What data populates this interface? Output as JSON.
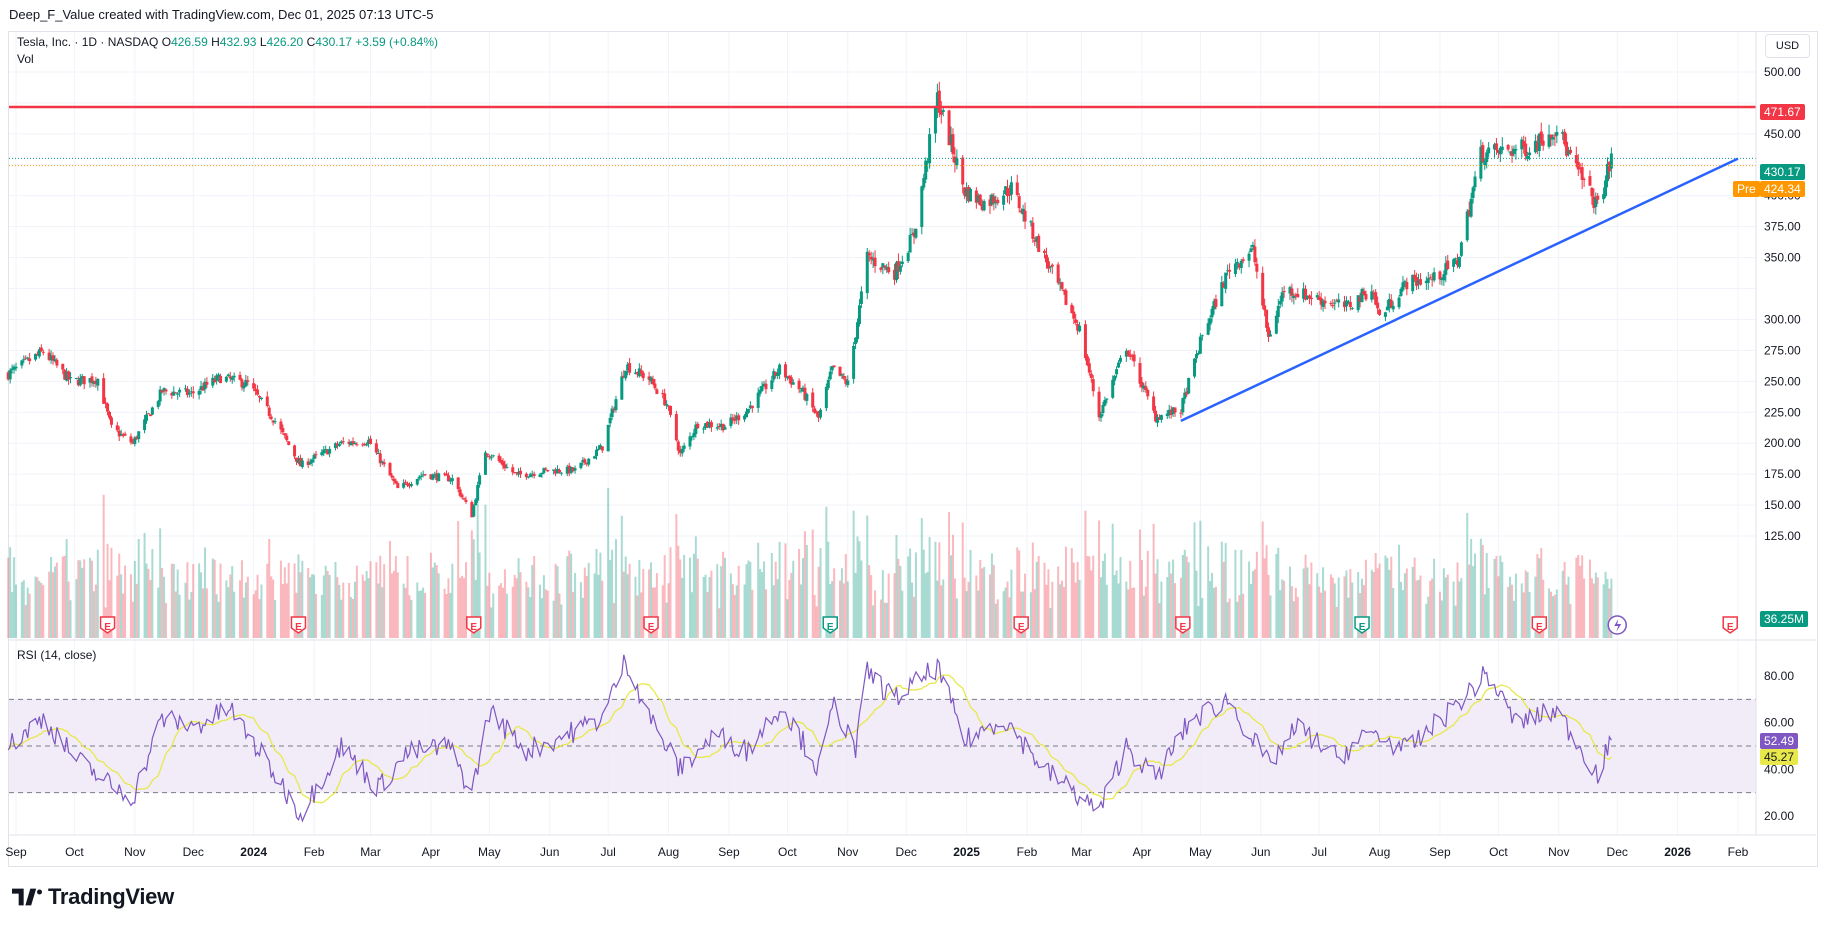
{
  "attribution": "Deep_F_Value created with TradingView.com, Dec 01, 2025 07:13 UTC-5",
  "legend": {
    "symbol": "Tesla, Inc. · 1D · NASDAQ",
    "open_label": "O",
    "open": "426.59",
    "high_label": "H",
    "high": "432.93",
    "low_label": "L",
    "low": "426.20",
    "close_label": "C",
    "close": "430.17",
    "change": "+3.59 (+0.84%)",
    "volume_label": "Vol"
  },
  "currency": "USD",
  "rsi_label": "RSI (14, close)",
  "price_tags": {
    "resistance": "471.67",
    "last": "430.17",
    "pre_label": "Pre",
    "pre": "424.34",
    "volume": "36.25M"
  },
  "rsi_tags": {
    "rsi": "52.49",
    "ma": "45.27"
  },
  "brand": "TradingView",
  "colors": {
    "up": "#089981",
    "down": "#f23645",
    "resistance": "#f23645",
    "trendline": "#2962ff",
    "rsi_line": "#7e57c2",
    "rsi_ma": "#e8e84a",
    "rsi_band": "#ede7f6",
    "pre": "#ff9800"
  },
  "earnings_marker_icons": [
    "earnings-marker-icon"
  ],
  "chart_data": [
    {
      "type": "candlestick",
      "title": "Tesla, Inc. · 1D · NASDAQ",
      "y_ticks": [
        125,
        150,
        175,
        200,
        225,
        250,
        275,
        300,
        325,
        350,
        375,
        400,
        425,
        450,
        475,
        500
      ],
      "y_tick_labels": [
        "125.00",
        "150.00",
        "175.00",
        "200.00",
        "225.00",
        "250.00",
        "275.00",
        "300.00",
        "",
        "350.00",
        "375.00",
        "400.00",
        "",
        "450.00",
        "",
        "500.00"
      ],
      "ylim": [
        115,
        505
      ],
      "x_tick_labels": [
        "Sep",
        "Oct",
        "Nov",
        "Dec",
        "2024",
        "Feb",
        "Mar",
        "Apr",
        "May",
        "Jun",
        "Jul",
        "Aug",
        "Sep",
        "Oct",
        "Nov",
        "Dec",
        "2025",
        "Feb",
        "Mar",
        "Apr",
        "May",
        "Jun",
        "Jul",
        "Aug",
        "Sep",
        "Oct",
        "Nov",
        "Dec",
        "2026",
        "Feb"
      ],
      "x_tick_dates": [
        "2023-09-01",
        "2023-10-01",
        "2023-11-01",
        "2023-12-01",
        "2024-01-01",
        "2024-02-01",
        "2024-03-01",
        "2024-04-01",
        "2024-05-01",
        "2024-06-01",
        "2024-07-01",
        "2024-08-01",
        "2024-09-01",
        "2024-10-01",
        "2024-11-01",
        "2024-12-01",
        "2025-01-01",
        "2025-02-01",
        "2025-03-01",
        "2025-04-01",
        "2025-05-01",
        "2025-06-01",
        "2025-07-01",
        "2025-08-01",
        "2025-09-01",
        "2025-10-01",
        "2025-11-01",
        "2025-12-01",
        "2026-01-01",
        "2026-02-01"
      ],
      "close_path": [
        {
          "date": "2023-08-28",
          "close": 256
        },
        {
          "date": "2023-09-15",
          "close": 274
        },
        {
          "date": "2023-09-29",
          "close": 250
        },
        {
          "date": "2023-10-13",
          "close": 252
        },
        {
          "date": "2023-10-20",
          "close": 212
        },
        {
          "date": "2023-10-31",
          "close": 200
        },
        {
          "date": "2023-11-15",
          "close": 242
        },
        {
          "date": "2023-11-30",
          "close": 240
        },
        {
          "date": "2023-12-15",
          "close": 253
        },
        {
          "date": "2023-12-29",
          "close": 248
        },
        {
          "date": "2024-01-12",
          "close": 218
        },
        {
          "date": "2024-01-25",
          "close": 182
        },
        {
          "date": "2024-02-15",
          "close": 200
        },
        {
          "date": "2024-02-29",
          "close": 202
        },
        {
          "date": "2024-03-15",
          "close": 163
        },
        {
          "date": "2024-03-28",
          "close": 175
        },
        {
          "date": "2024-04-12",
          "close": 171
        },
        {
          "date": "2024-04-22",
          "close": 142
        },
        {
          "date": "2024-04-29",
          "close": 194
        },
        {
          "date": "2024-05-15",
          "close": 174
        },
        {
          "date": "2024-05-31",
          "close": 178
        },
        {
          "date": "2024-06-14",
          "close": 178
        },
        {
          "date": "2024-06-28",
          "close": 197
        },
        {
          "date": "2024-07-10",
          "close": 263
        },
        {
          "date": "2024-07-22",
          "close": 252
        },
        {
          "date": "2024-07-31",
          "close": 232
        },
        {
          "date": "2024-08-07",
          "close": 191
        },
        {
          "date": "2024-08-16",
          "close": 216
        },
        {
          "date": "2024-08-30",
          "close": 214
        },
        {
          "date": "2024-09-10",
          "close": 226
        },
        {
          "date": "2024-09-27",
          "close": 260
        },
        {
          "date": "2024-10-09",
          "close": 241
        },
        {
          "date": "2024-10-17",
          "close": 220
        },
        {
          "date": "2024-10-24",
          "close": 260
        },
        {
          "date": "2024-11-01",
          "close": 248
        },
        {
          "date": "2024-11-11",
          "close": 350
        },
        {
          "date": "2024-11-25",
          "close": 338
        },
        {
          "date": "2024-12-05",
          "close": 369
        },
        {
          "date": "2024-12-17",
          "close": 479
        },
        {
          "date": "2024-12-31",
          "close": 404
        },
        {
          "date": "2025-01-10",
          "close": 394
        },
        {
          "date": "2025-01-24",
          "close": 406
        },
        {
          "date": "2025-02-10",
          "close": 350
        },
        {
          "date": "2025-02-28",
          "close": 292
        },
        {
          "date": "2025-03-10",
          "close": 222
        },
        {
          "date": "2025-03-24",
          "close": 278
        },
        {
          "date": "2025-04-08",
          "close": 221
        },
        {
          "date": "2025-04-21",
          "close": 227
        },
        {
          "date": "2025-05-02",
          "close": 287
        },
        {
          "date": "2025-05-16",
          "close": 342
        },
        {
          "date": "2025-05-28",
          "close": 356
        },
        {
          "date": "2025-06-05",
          "close": 285
        },
        {
          "date": "2025-06-13",
          "close": 325
        },
        {
          "date": "2025-06-30",
          "close": 317
        },
        {
          "date": "2025-07-15",
          "close": 310
        },
        {
          "date": "2025-07-28",
          "close": 325
        },
        {
          "date": "2025-08-01",
          "close": 302
        },
        {
          "date": "2025-08-15",
          "close": 330
        },
        {
          "date": "2025-08-29",
          "close": 333
        },
        {
          "date": "2025-09-10",
          "close": 347
        },
        {
          "date": "2025-09-22",
          "close": 434
        },
        {
          "date": "2025-10-03",
          "close": 436
        },
        {
          "date": "2025-10-17",
          "close": 439
        },
        {
          "date": "2025-10-31",
          "close": 456
        },
        {
          "date": "2025-11-07",
          "close": 430
        },
        {
          "date": "2025-11-21",
          "close": 391
        },
        {
          "date": "2025-11-28",
          "close": 430
        }
      ],
      "resistance_level": 471.67,
      "last_price": 430.17,
      "pre_market_price": 424.34,
      "trendline": {
        "start": {
          "date": "2025-04-21",
          "price": 218
        },
        "end": {
          "date": "2026-02-01",
          "price": 430
        }
      },
      "earnings_dates": [
        "2023-10-18",
        "2024-01-24",
        "2024-04-23",
        "2024-07-23",
        "2024-10-23",
        "2025-01-29",
        "2025-04-22",
        "2025-07-23",
        "2025-10-22",
        "2026-01-28"
      ],
      "earnings_beat": [
        false,
        false,
        false,
        false,
        true,
        false,
        false,
        true,
        false,
        false
      ]
    },
    {
      "type": "line",
      "title": "RSI (14, close)",
      "y_ticks": [
        20,
        40,
        60,
        80
      ],
      "y_tick_labels": [
        "20.00",
        "40.00",
        "60.00",
        "80.00"
      ],
      "ylim": [
        12,
        92
      ],
      "band": [
        30,
        70
      ],
      "midline": 50,
      "rsi_path": [
        {
          "date": "2023-08-28",
          "rsi": 50
        },
        {
          "date": "2023-09-15",
          "rsi": 62
        },
        {
          "date": "2023-10-01",
          "rsi": 45
        },
        {
          "date": "2023-10-20",
          "rsi": 33
        },
        {
          "date": "2023-10-31",
          "rsi": 28
        },
        {
          "date": "2023-11-15",
          "rsi": 62
        },
        {
          "date": "2023-12-01",
          "rsi": 58
        },
        {
          "date": "2023-12-20",
          "rsi": 66
        },
        {
          "date": "2024-01-10",
          "rsi": 40
        },
        {
          "date": "2024-01-25",
          "rsi": 21
        },
        {
          "date": "2024-02-15",
          "rsi": 50
        },
        {
          "date": "2024-03-05",
          "rsi": 32
        },
        {
          "date": "2024-03-20",
          "rsi": 47
        },
        {
          "date": "2024-04-10",
          "rsi": 50
        },
        {
          "date": "2024-04-22",
          "rsi": 30
        },
        {
          "date": "2024-05-01",
          "rsi": 65
        },
        {
          "date": "2024-05-20",
          "rsi": 48
        },
        {
          "date": "2024-06-10",
          "rsi": 55
        },
        {
          "date": "2024-06-28",
          "rsi": 62
        },
        {
          "date": "2024-07-10",
          "rsi": 87
        },
        {
          "date": "2024-07-25",
          "rsi": 58
        },
        {
          "date": "2024-08-07",
          "rsi": 40
        },
        {
          "date": "2024-08-25",
          "rsi": 55
        },
        {
          "date": "2024-09-10",
          "rsi": 48
        },
        {
          "date": "2024-09-28",
          "rsi": 68
        },
        {
          "date": "2024-10-17",
          "rsi": 40
        },
        {
          "date": "2024-10-25",
          "rsi": 68
        },
        {
          "date": "2024-11-05",
          "rsi": 48
        },
        {
          "date": "2024-11-11",
          "rsi": 82
        },
        {
          "date": "2024-11-25",
          "rsi": 70
        },
        {
          "date": "2024-12-17",
          "rsi": 84
        },
        {
          "date": "2024-12-31",
          "rsi": 52
        },
        {
          "date": "2025-01-20",
          "rsi": 62
        },
        {
          "date": "2025-02-10",
          "rsi": 40
        },
        {
          "date": "2025-03-10",
          "rsi": 22
        },
        {
          "date": "2025-03-24",
          "rsi": 50
        },
        {
          "date": "2025-04-08",
          "rsi": 36
        },
        {
          "date": "2025-04-25",
          "rsi": 60
        },
        {
          "date": "2025-05-15",
          "rsi": 70
        },
        {
          "date": "2025-06-05",
          "rsi": 42
        },
        {
          "date": "2025-06-20",
          "rsi": 58
        },
        {
          "date": "2025-07-10",
          "rsi": 45
        },
        {
          "date": "2025-07-28",
          "rsi": 56
        },
        {
          "date": "2025-08-15",
          "rsi": 48
        },
        {
          "date": "2025-09-05",
          "rsi": 64
        },
        {
          "date": "2025-09-25",
          "rsi": 81
        },
        {
          "date": "2025-10-10",
          "rsi": 60
        },
        {
          "date": "2025-10-31",
          "rsi": 65
        },
        {
          "date": "2025-11-10",
          "rsi": 52
        },
        {
          "date": "2025-11-21",
          "rsi": 38
        },
        {
          "date": "2025-11-28",
          "rsi": 52.49
        }
      ],
      "last_rsi": 52.49,
      "last_rsi_ma": 45.27
    }
  ]
}
